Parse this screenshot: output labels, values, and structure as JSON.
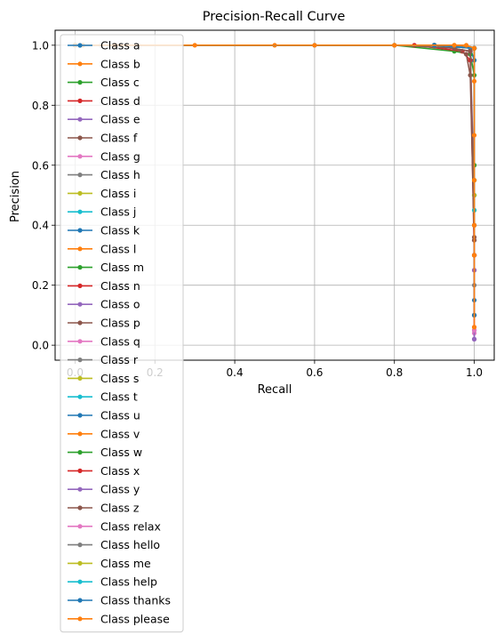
{
  "chart_data": {
    "type": "line",
    "title": "Precision-Recall Curve",
    "xlabel": "Recall",
    "ylabel": "Precision",
    "xlim": [
      -0.05,
      1.05
    ],
    "ylim": [
      -0.05,
      1.05
    ],
    "xticks": [
      "0.0",
      "0.2",
      "0.4",
      "0.6",
      "0.8",
      "1.0"
    ],
    "yticks": [
      "0.0",
      "0.2",
      "0.4",
      "0.6",
      "0.8",
      "1.0"
    ],
    "grid": true,
    "legend_position": "upper-left",
    "series": [
      {
        "name": "Class a",
        "color": "#1f77b4",
        "x": [
          0,
          0.6,
          0.9,
          0.99,
          1.0,
          1.0
        ],
        "y": [
          1.0,
          1.0,
          1.0,
          0.99,
          0.95,
          0.1
        ]
      },
      {
        "name": "Class b",
        "color": "#ff7f0e",
        "x": [
          0,
          0.5,
          0.95,
          1.0,
          1.0,
          1.0
        ],
        "y": [
          1.0,
          1.0,
          1.0,
          0.99,
          0.6,
          0.3
        ]
      },
      {
        "name": "Class c",
        "color": "#2ca02c",
        "x": [
          0,
          0.8,
          0.95,
          0.99,
          1.0,
          1.0
        ],
        "y": [
          1.0,
          1.0,
          0.98,
          0.97,
          0.9,
          0.5
        ]
      },
      {
        "name": "Class d",
        "color": "#d62728",
        "x": [
          0,
          0.85,
          0.97,
          0.99,
          1.0,
          1.0
        ],
        "y": [
          1.0,
          1.0,
          0.98,
          0.95,
          0.3,
          0.25
        ]
      },
      {
        "name": "Class e",
        "color": "#9467bd",
        "x": [
          0,
          0.9,
          0.99,
          1.0,
          1.0
        ],
        "y": [
          1.0,
          1.0,
          0.98,
          0.5,
          0.02
        ]
      },
      {
        "name": "Class f",
        "color": "#8c564b",
        "x": [
          0,
          0.8,
          0.95,
          0.98,
          0.99,
          1.0,
          1.0
        ],
        "y": [
          1.0,
          1.0,
          0.99,
          0.97,
          0.9,
          0.35,
          0.3
        ]
      },
      {
        "name": "Class g",
        "color": "#e377c2",
        "x": [
          0,
          0.9,
          1.0,
          1.0
        ],
        "y": [
          1.0,
          1.0,
          0.99,
          0.04
        ]
      },
      {
        "name": "Class h",
        "color": "#7f7f7f",
        "x": [
          0,
          0.9,
          1.0,
          1.0
        ],
        "y": [
          1.0,
          1.0,
          0.99,
          0.1
        ]
      },
      {
        "name": "Class i",
        "color": "#bcbd22",
        "x": [
          0,
          0.9,
          1.0,
          1.0
        ],
        "y": [
          1.0,
          1.0,
          0.99,
          0.45
        ]
      },
      {
        "name": "Class j",
        "color": "#17becf",
        "x": [
          0,
          0.9,
          1.0,
          1.0
        ],
        "y": [
          1.0,
          1.0,
          0.99,
          0.5
        ]
      },
      {
        "name": "Class k",
        "color": "#1f77b4",
        "x": [
          0,
          0.9,
          1.0,
          1.0
        ],
        "y": [
          1.0,
          1.0,
          0.99,
          0.05
        ]
      },
      {
        "name": "Class l",
        "color": "#ff7f0e",
        "x": [
          0,
          0.9,
          1.0,
          1.0
        ],
        "y": [
          1.0,
          1.0,
          0.99,
          0.4
        ]
      },
      {
        "name": "Class m",
        "color": "#2ca02c",
        "x": [
          0,
          0.9,
          1.0,
          1.0
        ],
        "y": [
          1.0,
          1.0,
          0.99,
          0.55
        ]
      },
      {
        "name": "Class n",
        "color": "#d62728",
        "x": [
          0,
          0.9,
          1.0,
          1.0
        ],
        "y": [
          1.0,
          1.0,
          0.99,
          0.3
        ]
      },
      {
        "name": "Class o",
        "color": "#9467bd",
        "x": [
          0,
          0.9,
          1.0,
          1.0
        ],
        "y": [
          1.0,
          1.0,
          0.99,
          0.02
        ]
      },
      {
        "name": "Class p",
        "color": "#8c564b",
        "x": [
          0,
          0.9,
          0.99,
          1.0,
          1.0
        ],
        "y": [
          1.0,
          1.0,
          0.98,
          0.4,
          0.36
        ]
      },
      {
        "name": "Class q",
        "color": "#e377c2",
        "x": [
          0,
          0.9,
          1.0,
          1.0
        ],
        "y": [
          1.0,
          1.0,
          0.99,
          0.06
        ]
      },
      {
        "name": "Class r",
        "color": "#7f7f7f",
        "x": [
          0,
          0.9,
          1.0,
          1.0
        ],
        "y": [
          1.0,
          1.0,
          0.99,
          0.2
        ]
      },
      {
        "name": "Class s",
        "color": "#bcbd22",
        "x": [
          0,
          0.9,
          1.0,
          1.0
        ],
        "y": [
          1.0,
          1.0,
          0.99,
          0.5
        ]
      },
      {
        "name": "Class t",
        "color": "#17becf",
        "x": [
          0,
          0.9,
          1.0,
          1.0
        ],
        "y": [
          1.0,
          1.0,
          0.99,
          0.55
        ]
      },
      {
        "name": "Class u",
        "color": "#1f77b4",
        "x": [
          0,
          0.9,
          1.0,
          1.0
        ],
        "y": [
          1.0,
          1.0,
          0.99,
          0.15
        ]
      },
      {
        "name": "Class v",
        "color": "#ff7f0e",
        "x": [
          0,
          0.9,
          1.0,
          1.0
        ],
        "y": [
          1.0,
          1.0,
          0.99,
          0.3
        ]
      },
      {
        "name": "Class w",
        "color": "#2ca02c",
        "x": [
          0,
          0.9,
          1.0,
          1.0
        ],
        "y": [
          1.0,
          1.0,
          0.99,
          0.6
        ]
      },
      {
        "name": "Class x",
        "color": "#d62728",
        "x": [
          0,
          0.9,
          1.0,
          1.0
        ],
        "y": [
          1.0,
          1.0,
          0.99,
          0.3
        ]
      },
      {
        "name": "Class y",
        "color": "#9467bd",
        "x": [
          0,
          0.9,
          1.0,
          1.0
        ],
        "y": [
          1.0,
          1.0,
          0.99,
          0.25
        ]
      },
      {
        "name": "Class z",
        "color": "#8c564b",
        "x": [
          0,
          0.9,
          0.99,
          1.0,
          1.0
        ],
        "y": [
          1.0,
          1.0,
          0.98,
          0.35,
          0.3
        ]
      },
      {
        "name": "Class relax",
        "color": "#e377c2",
        "x": [
          0,
          0.9,
          1.0,
          1.0
        ],
        "y": [
          1.0,
          1.0,
          0.99,
          0.05
        ]
      },
      {
        "name": "Class hello",
        "color": "#7f7f7f",
        "x": [
          0,
          0.9,
          1.0,
          1.0
        ],
        "y": [
          1.0,
          1.0,
          0.99,
          0.4
        ]
      },
      {
        "name": "Class me",
        "color": "#bcbd22",
        "x": [
          0,
          0.9,
          1.0,
          1.0
        ],
        "y": [
          1.0,
          1.0,
          0.99,
          0.55
        ]
      },
      {
        "name": "Class help",
        "color": "#17becf",
        "x": [
          0,
          0.9,
          1.0,
          1.0
        ],
        "y": [
          1.0,
          1.0,
          0.99,
          0.45
        ]
      },
      {
        "name": "Class thanks",
        "color": "#1f77b4",
        "x": [
          0,
          0.9,
          1.0,
          1.0
        ],
        "y": [
          1.0,
          1.0,
          0.99,
          0.1
        ]
      },
      {
        "name": "Class please",
        "color": "#ff7f0e",
        "x": [
          0,
          0.02,
          0.1,
          0.3,
          0.6,
          0.8,
          0.95,
          0.98,
          1.0,
          1.0,
          1.0,
          1.0,
          1.0,
          1.0,
          1.0
        ],
        "y": [
          1.0,
          1.0,
          1.0,
          1.0,
          1.0,
          1.0,
          1.0,
          1.0,
          0.99,
          0.88,
          0.7,
          0.55,
          0.4,
          0.3,
          0.06
        ]
      }
    ]
  }
}
